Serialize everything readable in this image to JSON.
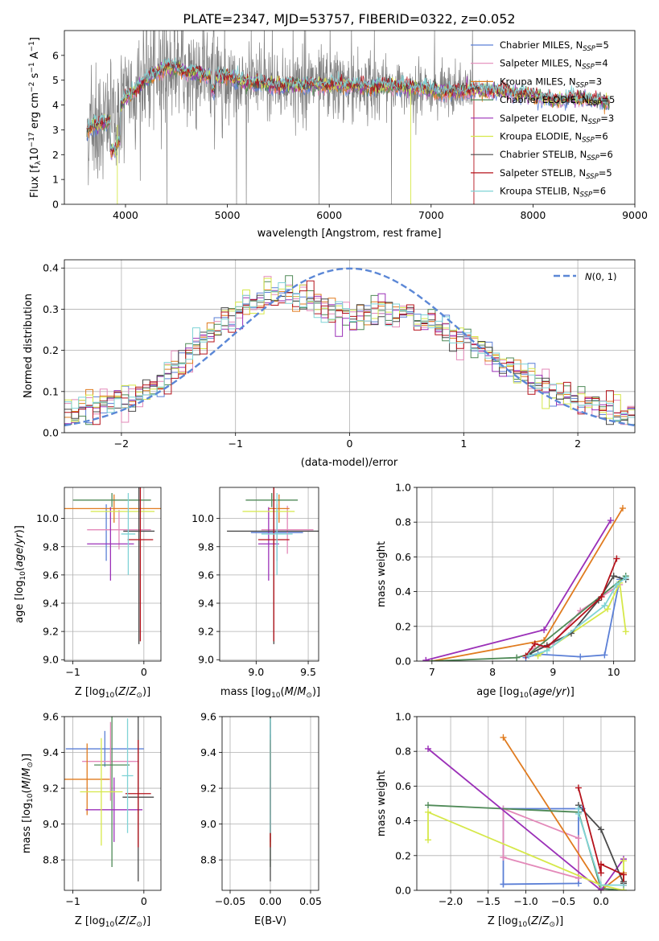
{
  "page_title": "PLATE=2347, MJD=53757, FIBERID=0322, z=0.052",
  "colors": {
    "Chabrier MILES": "#5b7fd6",
    "Salpeter MILES": "#e389b9",
    "Kroupa MILES": "#e07b1f",
    "Chabrier ELODIE": "#4f8a57",
    "Salpeter ELODIE": "#9b30b8",
    "Kroupa ELODIE": "#d6e84a",
    "Chabrier STELIB": "#4a4a4a",
    "Salpeter STELIB": "#b5121b",
    "Kroupa STELIB": "#7fd3d6",
    "data": "#808080",
    "normal": "#5b87d6"
  },
  "chart_data": [
    {
      "id": "spectrum",
      "type": "line",
      "xlabel": "wavelength [Angstrom, rest frame]",
      "ylabel": "Flux [f_λ 10^-17 erg cm^-2 s^-1 A^-1]",
      "xlim": [
        3400,
        9000
      ],
      "ylim": [
        0,
        7
      ],
      "xticks": [
        4000,
        5000,
        6000,
        7000,
        8000,
        9000
      ],
      "yticks": [
        0,
        1,
        2,
        3,
        4,
        5,
        6
      ],
      "legend_position": "top-right",
      "legend": [
        {
          "name": "Chabrier MILES",
          "nssp": "5"
        },
        {
          "name": "Salpeter MILES",
          "nssp": "4"
        },
        {
          "name": "Kroupa MILES",
          "nssp": "3"
        },
        {
          "name": "Chabrier ELODIE",
          "nssp": "5"
        },
        {
          "name": "Salpeter ELODIE",
          "nssp": "3"
        },
        {
          "name": "Kroupa ELODIE",
          "nssp": "6"
        },
        {
          "name": "Chabrier STELIB",
          "nssp": "6"
        },
        {
          "name": "Salpeter STELIB",
          "nssp": "5"
        },
        {
          "name": "Kroupa STELIB",
          "nssp": "6"
        }
      ],
      "model_continuum": [
        [
          3620,
          3.0
        ],
        [
          3700,
          3.2
        ],
        [
          3800,
          3.3
        ],
        [
          3900,
          3.4
        ],
        [
          4000,
          4.3
        ],
        [
          4100,
          4.6
        ],
        [
          4200,
          5.0
        ],
        [
          4300,
          5.3
        ],
        [
          4400,
          5.5
        ],
        [
          4500,
          5.5
        ],
        [
          4600,
          5.3
        ],
        [
          4700,
          5.3
        ],
        [
          4800,
          5.2
        ],
        [
          4900,
          5.1
        ],
        [
          5000,
          5.2
        ],
        [
          5100,
          5.0
        ],
        [
          5200,
          4.9
        ],
        [
          5300,
          4.9
        ],
        [
          5400,
          4.8
        ],
        [
          5600,
          4.8
        ],
        [
          5800,
          4.8
        ],
        [
          6000,
          4.8
        ],
        [
          6200,
          4.8
        ],
        [
          6400,
          4.7
        ],
        [
          6600,
          4.8
        ],
        [
          6800,
          4.7
        ],
        [
          7000,
          4.6
        ],
        [
          7200,
          4.5
        ],
        [
          7400,
          4.6
        ],
        [
          7600,
          4.6
        ],
        [
          7800,
          4.5
        ],
        [
          8000,
          4.4
        ],
        [
          8200,
          4.2
        ],
        [
          8400,
          4.3
        ],
        [
          8600,
          4.2
        ],
        [
          8750,
          4.1
        ]
      ],
      "data_wavelength_range": [
        3620,
        7420
      ],
      "data_noise": "strong below 5000 A"
    },
    {
      "id": "residuals",
      "type": "histogram",
      "xlabel": "(data-model)/error",
      "ylabel": "Normed distribution",
      "xlim": [
        -2.5,
        2.5
      ],
      "ylim": [
        0,
        0.42
      ],
      "xticks": [
        -2,
        -1,
        0,
        1,
        2
      ],
      "yticks": [
        0.0,
        0.1,
        0.2,
        0.3,
        0.4
      ],
      "legend_position": "top-right",
      "legend_label": "N(0,1)",
      "bin_width": 0.1,
      "base_values": [
        0.045,
        0.05,
        0.055,
        0.06,
        0.062,
        0.068,
        0.072,
        0.078,
        0.08,
        0.085,
        0.09,
        0.1,
        0.11,
        0.12,
        0.14,
        0.155,
        0.17,
        0.19,
        0.21,
        0.225,
        0.24,
        0.255,
        0.27,
        0.28,
        0.295,
        0.305,
        0.315,
        0.325,
        0.335,
        0.34,
        0.34,
        0.335,
        0.33,
        0.33,
        0.32,
        0.31,
        0.3,
        0.3,
        0.29,
        0.295,
        0.285,
        0.28,
        0.285,
        0.29,
        0.3,
        0.29,
        0.295,
        0.3,
        0.29,
        0.285,
        0.28,
        0.27,
        0.26,
        0.255,
        0.24,
        0.23,
        0.22,
        0.21,
        0.2,
        0.19,
        0.18,
        0.17,
        0.16,
        0.15,
        0.14,
        0.13,
        0.12,
        0.11,
        0.1,
        0.095,
        0.085,
        0.08,
        0.075,
        0.07,
        0.065,
        0.06,
        0.055,
        0.05,
        0.048,
        0.045
      ]
    },
    {
      "id": "age_vs_Z",
      "type": "errorbar",
      "xlabel": "Z [log10(Z/Z⊙)]",
      "ylabel": "age [log10(age/yr)]",
      "xlim": [
        -1.12,
        0.24
      ],
      "ylim": [
        8.99,
        10.22
      ],
      "xticks": [
        -1,
        0
      ],
      "yticks": [
        9.0,
        9.2,
        9.4,
        9.6,
        9.8,
        10.0
      ],
      "points": [
        {
          "model": "Chabrier MILES",
          "x": -0.53,
          "y": 9.9,
          "xerr": 0.0,
          "yerr": 0.2
        },
        {
          "model": "Salpeter MILES",
          "x": -0.35,
          "y": 9.92,
          "xerr": 0.45,
          "yerr": 0.14
        },
        {
          "model": "Kroupa MILES",
          "x": -0.42,
          "y": 10.07,
          "xerr": 0.7,
          "yerr": 0.1
        },
        {
          "model": "Chabrier ELODIE",
          "x": -0.45,
          "y": 10.13,
          "xerr": 0.55,
          "yerr": 0.05
        },
        {
          "model": "Salpeter ELODIE",
          "x": -0.47,
          "y": 9.82,
          "xerr": 0.33,
          "yerr": 0.26
        },
        {
          "model": "Kroupa ELODIE",
          "x": -0.3,
          "y": 10.05,
          "xerr": 0.45,
          "yerr": 0.0
        },
        {
          "model": "Chabrier STELIB",
          "x": -0.07,
          "y": 9.91,
          "xerr": 0.22,
          "yerr": 0.8
        },
        {
          "model": "Salpeter STELIB",
          "x": -0.05,
          "y": 9.85,
          "xerr": 0.18,
          "yerr": 0.72
        },
        {
          "model": "Kroupa STELIB",
          "x": -0.22,
          "y": 9.89,
          "xerr": 0.1,
          "yerr": 0.29
        }
      ]
    },
    {
      "id": "age_vs_mass",
      "type": "errorbar",
      "xlabel": "mass [log10(M/M⊙)]",
      "ylabel": "",
      "xlim": [
        8.65,
        9.6
      ],
      "ylim": [
        8.99,
        10.22
      ],
      "xticks": [
        9.0,
        9.5
      ],
      "yticks": [
        9.0,
        9.2,
        9.4,
        9.6,
        9.8,
        10.0
      ],
      "points": [
        {
          "model": "Chabrier MILES",
          "x": 9.2,
          "y": 9.9,
          "xerr": 0.25,
          "yerr": 0.2
        },
        {
          "model": "Salpeter MILES",
          "x": 9.3,
          "y": 9.92,
          "xerr": 0.25,
          "yerr": 0.17
        },
        {
          "model": "Kroupa MILES",
          "x": 9.22,
          "y": 10.07,
          "xerr": 0.1,
          "yerr": 0.1
        },
        {
          "model": "Chabrier ELODIE",
          "x": 9.15,
          "y": 10.13,
          "xerr": 0.25,
          "yerr": 0.05
        },
        {
          "model": "Salpeter ELODIE",
          "x": 9.12,
          "y": 9.82,
          "xerr": 0.1,
          "yerr": 0.26
        },
        {
          "model": "Kroupa ELODIE",
          "x": 9.12,
          "y": 10.05,
          "xerr": 0.25,
          "yerr": 0.0
        },
        {
          "model": "Chabrier STELIB",
          "x": 9.17,
          "y": 9.91,
          "xerr": 0.45,
          "yerr": 0.8
        },
        {
          "model": "Salpeter STELIB",
          "x": 9.17,
          "y": 9.85,
          "xerr": 0.15,
          "yerr": 0.72
        },
        {
          "model": "Kroupa STELIB",
          "x": 9.2,
          "y": 9.89,
          "xerr": 0.15,
          "yerr": 0.29
        }
      ]
    },
    {
      "id": "weight_vs_age",
      "type": "line",
      "xlabel": "age [log10(age/yr)]",
      "ylabel": "mass weight",
      "xlim": [
        6.75,
        10.35
      ],
      "ylim": [
        0,
        1.0
      ],
      "xticks": [
        7,
        8,
        9,
        10
      ],
      "yticks": [
        0.0,
        0.2,
        0.4,
        0.6,
        0.8,
        1.0
      ],
      "series": [
        {
          "model": "Chabrier MILES",
          "x": [
            8.55,
            8.75,
            9.45,
            9.85,
            10.1
          ],
          "y": [
            0.02,
            0.04,
            0.025,
            0.035,
            0.47
          ]
        },
        {
          "model": "Salpeter MILES",
          "x": [
            8.65,
            9.0,
            9.45,
            10.1
          ],
          "y": [
            0.07,
            0.1,
            0.29,
            0.44
          ]
        },
        {
          "model": "Kroupa MILES",
          "x": [
            7.0,
            8.85,
            10.15
          ],
          "y": [
            0.0,
            0.12,
            0.88
          ]
        },
        {
          "model": "Chabrier ELODIE",
          "x": [
            7.0,
            8.4,
            8.6,
            10.2
          ],
          "y": [
            0.0,
            0.02,
            0.04,
            0.49
          ]
        },
        {
          "model": "Salpeter ELODIE",
          "x": [
            6.9,
            8.85,
            9.95
          ],
          "y": [
            0.005,
            0.18,
            0.81
          ]
        },
        {
          "model": "Kroupa ELODIE",
          "x": [
            8.75,
            9.9,
            10.1,
            10.2
          ],
          "y": [
            0.03,
            0.3,
            0.45,
            0.17
          ]
        },
        {
          "model": "Chabrier STELIB",
          "x": [
            8.6,
            8.9,
            9.3,
            9.75,
            10.0,
            10.2
          ],
          "y": [
            0.04,
            0.09,
            0.16,
            0.35,
            0.49,
            0.47
          ]
        },
        {
          "model": "Salpeter STELIB",
          "x": [
            8.55,
            8.7,
            8.9,
            9.8,
            10.05
          ],
          "y": [
            0.03,
            0.1,
            0.08,
            0.37,
            0.59
          ]
        },
        {
          "model": "Kroupa STELIB",
          "x": [
            8.6,
            8.9,
            9.85,
            10.05,
            10.2
          ],
          "y": [
            0.03,
            0.06,
            0.32,
            0.44,
            0.48
          ]
        }
      ]
    },
    {
      "id": "mass_vs_Z",
      "type": "errorbar",
      "xlabel": "Z [log10(Z/Z⊙)]",
      "ylabel": "mass [log10(M/M⊙)]",
      "xlim": [
        -1.12,
        0.24
      ],
      "ylim": [
        8.63,
        9.6
      ],
      "xticks": [
        -1,
        0
      ],
      "yticks": [
        8.8,
        9.0,
        9.2,
        9.4,
        9.6
      ],
      "points": [
        {
          "model": "Chabrier MILES",
          "x": -0.55,
          "y": 9.42,
          "xerr": 0.55,
          "yerr": 0.1
        },
        {
          "model": "Salpeter MILES",
          "x": -0.47,
          "y": 9.35,
          "xerr": 0.4,
          "yerr": 0.22
        },
        {
          "model": "Kroupa MILES",
          "x": -0.8,
          "y": 9.25,
          "xerr": 0.32,
          "yerr": 0.2
        },
        {
          "model": "Chabrier ELODIE",
          "x": -0.45,
          "y": 9.33,
          "xerr": 0.25,
          "yerr": 0.57
        },
        {
          "model": "Salpeter ELODIE",
          "x": -0.42,
          "y": 9.08,
          "xerr": 0.4,
          "yerr": 0.18
        },
        {
          "model": "Kroupa ELODIE",
          "x": -0.6,
          "y": 9.18,
          "xerr": 0.3,
          "yerr": 0.3
        },
        {
          "model": "Chabrier STELIB",
          "x": -0.08,
          "y": 9.15,
          "xerr": 0.22,
          "yerr": 0.47
        },
        {
          "model": "Salpeter STELIB",
          "x": -0.08,
          "y": 9.17,
          "xerr": 0.18,
          "yerr": 0.3
        },
        {
          "model": "Kroupa STELIB",
          "x": -0.23,
          "y": 9.27,
          "xerr": 0.08,
          "yerr": 0.32
        }
      ]
    },
    {
      "id": "mass_vs_EBV",
      "type": "errorbar",
      "xlabel": "E(B-V)",
      "ylabel": "",
      "xlim": [
        -0.06,
        0.06
      ],
      "ylim": [
        8.63,
        9.6
      ],
      "xticks": [
        -0.05,
        0.0,
        0.05
      ],
      "yticks": [
        8.8,
        9.0,
        9.2,
        9.4,
        9.6
      ],
      "points": [
        {
          "model": "Chabrier MILES",
          "x": 0.0,
          "y": 9.4,
          "xerr": 0.0,
          "yerr": 0.1
        },
        {
          "model": "Salpeter MILES",
          "x": 0.0,
          "y": 9.35,
          "xerr": 0.0,
          "yerr": 0.22
        },
        {
          "model": "Kroupa MILES",
          "x": 0.0,
          "y": 9.25,
          "xerr": 0.0,
          "yerr": 0.2
        },
        {
          "model": "Chabrier ELODIE",
          "x": 0.0,
          "y": 9.33,
          "xerr": 0.0,
          "yerr": 0.57
        },
        {
          "model": "Salpeter ELODIE",
          "x": 0.0,
          "y": 9.08,
          "xerr": 0.0,
          "yerr": 0.18
        },
        {
          "model": "Kroupa ELODIE",
          "x": 0.0,
          "y": 9.18,
          "xerr": 0.0,
          "yerr": 0.3
        },
        {
          "model": "Chabrier STELIB",
          "x": 0.0,
          "y": 9.15,
          "xerr": 0.0,
          "yerr": 0.47
        },
        {
          "model": "Salpeter STELIB",
          "x": 0.0,
          "y": 9.17,
          "xerr": 0.0,
          "yerr": 0.3
        },
        {
          "model": "Kroupa STELIB",
          "x": 0.0,
          "y": 9.27,
          "xerr": 0.0,
          "yerr": 0.32
        }
      ]
    },
    {
      "id": "weight_vs_Z",
      "type": "line",
      "xlabel": "Z [log10(Z/Z⊙)]",
      "ylabel": "mass weight",
      "xlim": [
        -2.45,
        0.45
      ],
      "ylim": [
        0,
        1.0
      ],
      "xticks": [
        -2.0,
        -1.5,
        -1.0,
        -0.5,
        0.0
      ],
      "yticks": [
        0.0,
        0.2,
        0.4,
        0.6,
        0.8,
        1.0
      ],
      "series": [
        {
          "model": "Chabrier MILES",
          "x": [
            -1.3,
            -0.3,
            -0.3,
            -0.25,
            -1.3,
            -1.3
          ],
          "y": [
            0.035,
            0.04,
            0.47,
            0.47,
            0.47,
            0.035
          ]
        },
        {
          "model": "Salpeter MILES",
          "x": [
            -1.3,
            -0.3,
            -0.3,
            -1.3,
            -1.3
          ],
          "y": [
            0.19,
            0.07,
            0.3,
            0.47,
            0.19
          ]
        },
        {
          "model": "Kroupa MILES",
          "x": [
            -1.3,
            0.0,
            0.0,
            0.3
          ],
          "y": [
            0.88,
            0.01,
            0.0,
            0.1
          ]
        },
        {
          "model": "Chabrier ELODIE",
          "x": [
            -2.3,
            -0.3,
            0.0,
            0.3
          ],
          "y": [
            0.49,
            0.45,
            0.01,
            0.0
          ]
        },
        {
          "model": "Salpeter ELODIE",
          "x": [
            -2.3,
            0.0,
            0.3
          ],
          "y": [
            0.815,
            0.0,
            0.18
          ]
        },
        {
          "model": "Kroupa ELODIE",
          "x": [
            -2.3,
            -2.3,
            0.0,
            0.3,
            0.3
          ],
          "y": [
            0.29,
            0.45,
            0.03,
            0.0,
            0.17
          ]
        },
        {
          "model": "Chabrier STELIB",
          "x": [
            -0.3,
            0.0,
            0.3,
            0.3
          ],
          "y": [
            0.49,
            0.35,
            0.04,
            0.05
          ]
        },
        {
          "model": "Salpeter STELIB",
          "x": [
            -0.3,
            0.0,
            0.0,
            0.3,
            0.3
          ],
          "y": [
            0.59,
            0.1,
            0.15,
            0.09,
            0.03
          ]
        },
        {
          "model": "Kroupa STELIB",
          "x": [
            -0.3,
            -0.3,
            0.0,
            0.3
          ],
          "y": [
            0.47,
            0.44,
            0.03,
            0.03
          ]
        }
      ]
    }
  ]
}
